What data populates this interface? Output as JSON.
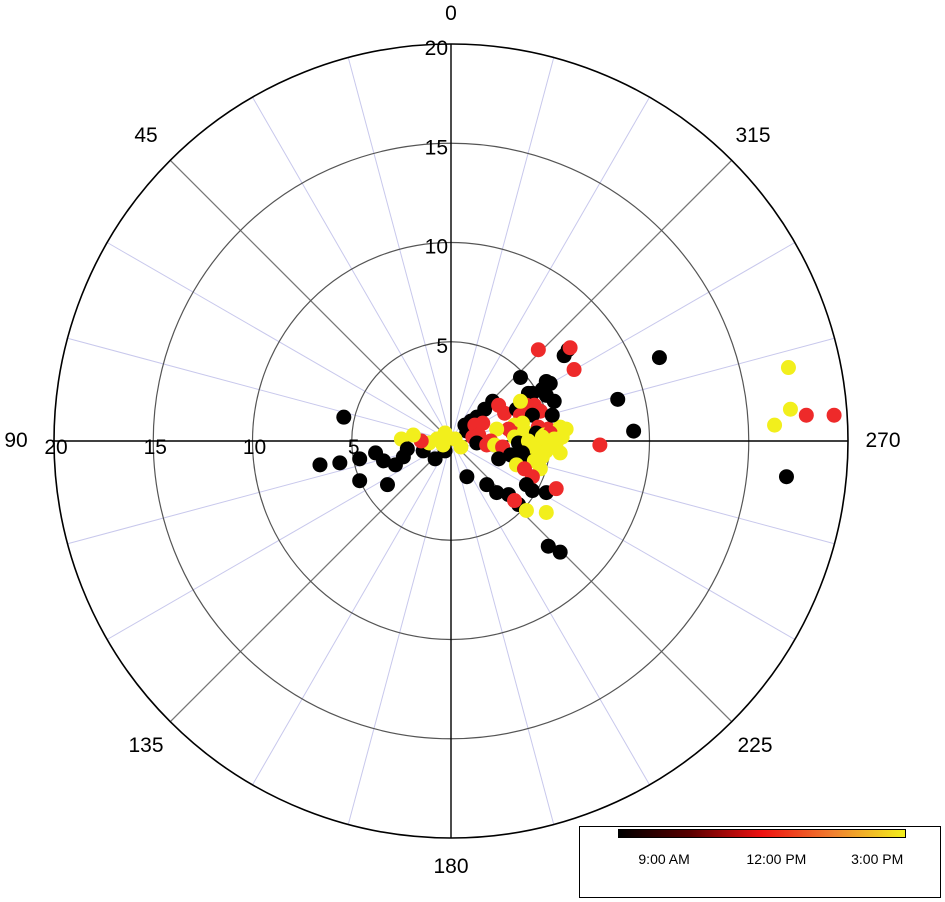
{
  "chart_data": {
    "type": "scatter",
    "projection": "polar",
    "angular_axis": {
      "zero_at": "top",
      "direction": "counterclockwise",
      "unit": "degrees"
    },
    "radial_axis": {
      "range": [
        0,
        20
      ],
      "ticks": [
        5,
        10,
        15,
        20
      ]
    },
    "radial_tick_labels": [
      "5",
      "10",
      "15",
      "20"
    ],
    "angle_labels": [
      {
        "deg": 0,
        "text": "0"
      },
      {
        "deg": 45,
        "text": "45"
      },
      {
        "deg": 90,
        "text": "90"
      },
      {
        "deg": 135,
        "text": "135"
      },
      {
        "deg": 180,
        "text": "180"
      },
      {
        "deg": 225,
        "text": "225"
      },
      {
        "deg": 270,
        "text": "270"
      },
      {
        "deg": 315,
        "text": "315"
      }
    ],
    "minor_spoke_step_deg": 15,
    "grid": true,
    "colors": {
      "black": "#000000",
      "red": "#ee2a2a",
      "yellow": "#f2ef1c",
      "axis": "#000000",
      "spoke_minor": "#c8c8ec",
      "spoke_major": "#777777"
    },
    "colorbar": {
      "labels": [
        {
          "text": "9:00 AM",
          "pos": 0.16
        },
        {
          "text": "12:00 PM",
          "pos": 0.55
        },
        {
          "text": "3:00 PM",
          "pos": 0.9
        }
      ],
      "gradient": [
        "#000000",
        "#5a0000",
        "#ee1111",
        "#f08030",
        "#f2ef1c"
      ]
    },
    "points": [
      [
        3.9,
        -2.4,
        "black"
      ],
      [
        4.1,
        -2.4,
        "black"
      ],
      [
        4.8,
        -2.3,
        "black"
      ],
      [
        4.6,
        -2.6,
        "black"
      ],
      [
        4.8,
        -3.0,
        "black"
      ],
      [
        5.2,
        -2.0,
        "black"
      ],
      [
        4.5,
        -1.5,
        "red"
      ],
      [
        4.2,
        -1.8,
        "red"
      ],
      [
        2.1,
        -2.0,
        "black"
      ],
      [
        1.7,
        -1.6,
        "black"
      ],
      [
        1.3,
        -1.2,
        "black"
      ],
      [
        1.0,
        -1.0,
        "black"
      ],
      [
        0.7,
        -0.8,
        "black"
      ],
      [
        0.8,
        -0.5,
        "black"
      ],
      [
        1.2,
        -0.8,
        "red"
      ],
      [
        1.6,
        -0.9,
        "red"
      ],
      [
        2.4,
        -1.8,
        "red"
      ],
      [
        2.7,
        -1.4,
        "red"
      ],
      [
        3.3,
        -1.6,
        "black"
      ],
      [
        3.5,
        -1.3,
        "red"
      ],
      [
        3.8,
        -1.8,
        "red"
      ],
      [
        3.5,
        -2.0,
        "yellow"
      ],
      [
        4.1,
        -1.3,
        "black"
      ],
      [
        4.4,
        -0.7,
        "red"
      ],
      [
        4.9,
        -0.6,
        "red"
      ],
      [
        5.5,
        -0.7,
        "yellow"
      ],
      [
        5.8,
        -0.6,
        "yellow"
      ],
      [
        3.6,
        -0.9,
        "yellow"
      ],
      [
        3.2,
        -0.8,
        "yellow"
      ],
      [
        2.9,
        -0.6,
        "red"
      ],
      [
        2.3,
        -0.6,
        "yellow"
      ],
      [
        3.1,
        -0.4,
        "red"
      ],
      [
        3.7,
        -0.5,
        "yellow"
      ],
      [
        4.3,
        -0.4,
        "black"
      ],
      [
        4.7,
        -0.3,
        "yellow"
      ],
      [
        5.0,
        -0.4,
        "red"
      ],
      [
        3.2,
        -0.2,
        "yellow"
      ],
      [
        4.6,
        -0.2,
        "yellow"
      ],
      [
        5.6,
        -0.2,
        "yellow"
      ],
      [
        5.2,
        -0.1,
        "yellow"
      ],
      [
        1.1,
        -0.2,
        "red"
      ],
      [
        1.4,
        -0.3,
        "red"
      ],
      [
        2.0,
        0.0,
        "red"
      ],
      [
        1.3,
        0.1,
        "black"
      ],
      [
        1.8,
        0.2,
        "red"
      ],
      [
        2.2,
        0.2,
        "yellow"
      ],
      [
        2.6,
        0.3,
        "red"
      ],
      [
        3.4,
        0.1,
        "black"
      ],
      [
        3.9,
        0.0,
        "yellow"
      ],
      [
        4.3,
        0.2,
        "yellow"
      ],
      [
        4.7,
        0.1,
        "yellow"
      ],
      [
        5.3,
        0.1,
        "yellow"
      ],
      [
        4.2,
        0.4,
        "yellow"
      ],
      [
        4.8,
        0.5,
        "yellow"
      ],
      [
        4.6,
        0.8,
        "yellow"
      ],
      [
        5.5,
        0.6,
        "yellow"
      ],
      [
        3.6,
        0.6,
        "black"
      ],
      [
        3.9,
        1.0,
        "black"
      ],
      [
        3.0,
        0.7,
        "black"
      ],
      [
        2.4,
        0.9,
        "black"
      ],
      [
        4.2,
        1.0,
        "yellow"
      ],
      [
        4.5,
        1.4,
        "yellow"
      ],
      [
        3.3,
        1.2,
        "yellow"
      ],
      [
        3.7,
        1.4,
        "red"
      ],
      [
        4.1,
        1.8,
        "red"
      ],
      [
        3.8,
        2.2,
        "black"
      ],
      [
        2.9,
        2.7,
        "black"
      ],
      [
        2.3,
        2.6,
        "black"
      ],
      [
        1.8,
        2.2,
        "black"
      ],
      [
        0.8,
        1.8,
        "black"
      ],
      [
        -0.3,
        0.5,
        "black"
      ],
      [
        -0.8,
        0.9,
        "black"
      ],
      [
        -1.4,
        0.5,
        "black"
      ],
      [
        -0.2,
        -0.2,
        "black"
      ],
      [
        -0.7,
        -0.1,
        "yellow"
      ],
      [
        -1.1,
        0.1,
        "yellow"
      ],
      [
        -0.4,
        0.2,
        "yellow"
      ],
      [
        0.2,
        -0.1,
        "yellow"
      ],
      [
        0.5,
        0.3,
        "yellow"
      ],
      [
        -0.3,
        -0.4,
        "yellow"
      ],
      [
        -1.5,
        0.0,
        "red"
      ],
      [
        -1.9,
        -0.3,
        "yellow"
      ],
      [
        -2.5,
        -0.1,
        "yellow"
      ],
      [
        -2.2,
        0.4,
        "black"
      ],
      [
        -2.4,
        0.8,
        "black"
      ],
      [
        -2.8,
        1.2,
        "black"
      ],
      [
        -3.4,
        1.0,
        "black"
      ],
      [
        -3.8,
        0.6,
        "black"
      ],
      [
        -4.6,
        0.9,
        "black"
      ],
      [
        -5.6,
        1.1,
        "black"
      ],
      [
        -6.6,
        1.2,
        "black"
      ],
      [
        -4.6,
        2.0,
        "black"
      ],
      [
        -3.2,
        2.2,
        "black"
      ],
      [
        -5.4,
        -1.2,
        "black"
      ],
      [
        3.5,
        -3.2,
        "black"
      ],
      [
        4.4,
        -4.6,
        "red"
      ],
      [
        5.7,
        -4.3,
        "black"
      ],
      [
        5.9,
        -4.6,
        "black"
      ],
      [
        6.0,
        -4.7,
        "red"
      ],
      [
        6.2,
        -3.6,
        "red"
      ],
      [
        5.0,
        -2.9,
        "black"
      ],
      [
        5.1,
        -1.3,
        "black"
      ],
      [
        8.4,
        -2.1,
        "black"
      ],
      [
        9.2,
        -0.5,
        "black"
      ],
      [
        7.5,
        0.2,
        "red"
      ],
      [
        10.5,
        -4.2,
        "black"
      ],
      [
        16.3,
        -0.8,
        "yellow"
      ],
      [
        17.1,
        -1.6,
        "yellow"
      ],
      [
        17.0,
        -3.7,
        "yellow"
      ],
      [
        17.9,
        -1.3,
        "red"
      ],
      [
        19.3,
        -1.3,
        "red"
      ],
      [
        16.9,
        1.8,
        "black"
      ],
      [
        4.8,
        2.6,
        "black"
      ],
      [
        5.3,
        2.4,
        "red"
      ],
      [
        4.1,
        2.5,
        "black"
      ],
      [
        3.4,
        3.2,
        "black"
      ],
      [
        3.8,
        3.5,
        "yellow"
      ],
      [
        3.2,
        3.0,
        "red"
      ],
      [
        4.8,
        3.6,
        "yellow"
      ],
      [
        4.9,
        5.3,
        "black"
      ],
      [
        5.5,
        5.6,
        "black"
      ]
    ]
  }
}
